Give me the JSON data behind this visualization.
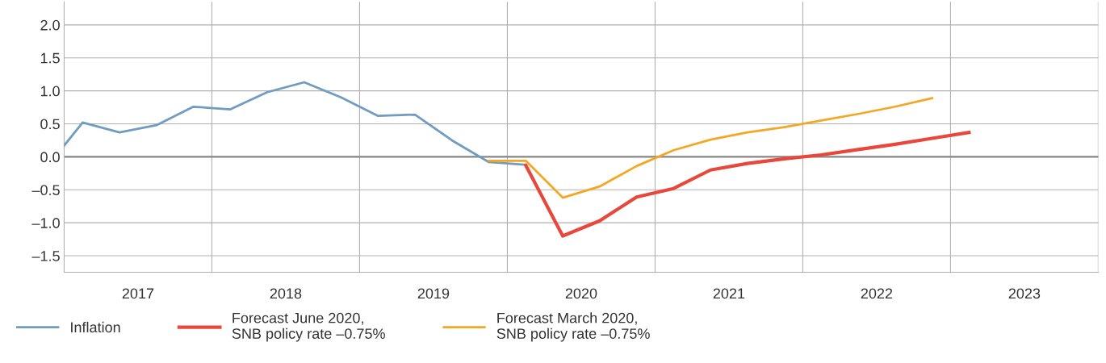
{
  "chart_data": {
    "type": "line",
    "xlim": [
      2017,
      2024
    ],
    "xticks": [
      {
        "value": 2017,
        "label": null
      },
      {
        "value": 2017.5,
        "label": "2017"
      },
      {
        "value": 2018,
        "label": null
      },
      {
        "value": 2018.5,
        "label": "2018"
      },
      {
        "value": 2019,
        "label": null
      },
      {
        "value": 2019.5,
        "label": "2019"
      },
      {
        "value": 2020,
        "label": null
      },
      {
        "value": 2020.5,
        "label": "2020"
      },
      {
        "value": 2021,
        "label": null
      },
      {
        "value": 2021.5,
        "label": "2021"
      },
      {
        "value": 2022,
        "label": null
      },
      {
        "value": 2022.5,
        "label": "2022"
      },
      {
        "value": 2023,
        "label": null
      },
      {
        "value": 2023.5,
        "label": "2023"
      },
      {
        "value": 2024,
        "label": null
      }
    ],
    "ylim": [
      -1.75,
      2.35
    ],
    "yticks": [
      {
        "value": -1.5,
        "label": "–1.5"
      },
      {
        "value": -1.0,
        "label": "–1.0"
      },
      {
        "value": -0.5,
        "label": "–0.5"
      },
      {
        "value": 0.0,
        "label": "0.0"
      },
      {
        "value": 0.5,
        "label": "0.5"
      },
      {
        "value": 1.0,
        "label": "1.0"
      },
      {
        "value": 1.5,
        "label": "1.5"
      },
      {
        "value": 2.0,
        "label": "2.0"
      }
    ],
    "grid": true,
    "legend": "bottom",
    "ref_lines": [
      {
        "axis": "y",
        "value": 0,
        "color": "#888888"
      }
    ],
    "series": [
      {
        "name": "Inflation",
        "color": "#6f9cc0",
        "x": [
          2017.0,
          2017.125,
          2017.375,
          2017.625,
          2017.875,
          2018.125,
          2018.375,
          2018.625,
          2018.875,
          2019.125,
          2019.375,
          2019.625,
          2019.875,
          2020.125
        ],
        "values": [
          0.17,
          0.52,
          0.37,
          0.48,
          0.76,
          0.72,
          0.98,
          1.13,
          0.9,
          0.62,
          0.64,
          0.25,
          -0.08,
          -0.12
        ]
      },
      {
        "name": "Forecast June 2020,\nSNB policy rate –0.75%",
        "color": "#e8473c",
        "x": [
          2020.125,
          2020.375,
          2020.625,
          2020.875,
          2021.125,
          2021.375,
          2021.625,
          2021.875,
          2022.125,
          2022.375,
          2022.625,
          2022.875,
          2023.125
        ],
        "values": [
          -0.13,
          -1.2,
          -0.97,
          -0.61,
          -0.48,
          -0.2,
          -0.1,
          -0.03,
          0.03,
          0.11,
          0.19,
          0.28,
          0.37
        ]
      },
      {
        "name": "Forecast March 2020,\nSNB policy rate –0.75%",
        "color": "#f5a623",
        "x": [
          2019.875,
          2020.125,
          2020.375,
          2020.625,
          2020.875,
          2021.125,
          2021.375,
          2021.625,
          2021.875,
          2022.125,
          2022.375,
          2022.625,
          2022.875
        ],
        "values": [
          -0.06,
          -0.06,
          -0.62,
          -0.45,
          -0.14,
          0.1,
          0.26,
          0.37,
          0.45,
          0.55,
          0.65,
          0.76,
          0.89
        ]
      }
    ]
  }
}
